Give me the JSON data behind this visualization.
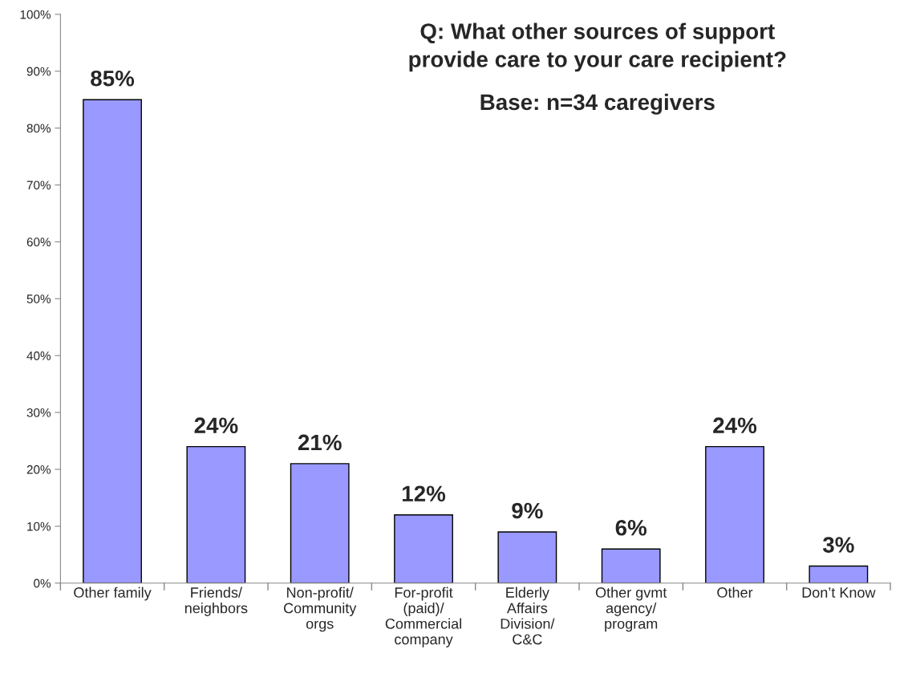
{
  "chart_data": {
    "type": "bar",
    "title": "Q: What other sources of support\nprovide care to your care recipient?",
    "subtitle": "Base: n=34 caregivers",
    "categories": [
      "Other family",
      "Friends/\nneighbors",
      "Non-profit/\nCommunity\norgs",
      "For-profit\n(paid)/\nCommercial\ncompany",
      "Elderly\nAffairs\nDivision/\nC&C",
      "Other gvmt\nagency/\nprogram",
      "Other",
      "Don’t Know"
    ],
    "values": [
      85,
      24,
      21,
      12,
      9,
      6,
      24,
      3
    ],
    "value_labels": [
      "85%",
      "24%",
      "21%",
      "12%",
      "9%",
      "6%",
      "24%",
      "3%"
    ],
    "color": "#9999ff",
    "ylim": [
      0,
      100
    ],
    "yticks": [
      {
        "value": 0,
        "label": "0%"
      },
      {
        "value": 10,
        "label": "10%"
      },
      {
        "value": 20,
        "label": "20%"
      },
      {
        "value": 30,
        "label": "30%"
      },
      {
        "value": 40,
        "label": "40%"
      },
      {
        "value": 50,
        "label": "50%"
      },
      {
        "value": 60,
        "label": "60%"
      },
      {
        "value": 70,
        "label": "70%"
      },
      {
        "value": 80,
        "label": "80%"
      },
      {
        "value": 90,
        "label": "90%"
      },
      {
        "value": 100,
        "label": "100%"
      }
    ],
    "grid": false,
    "legend": false
  }
}
